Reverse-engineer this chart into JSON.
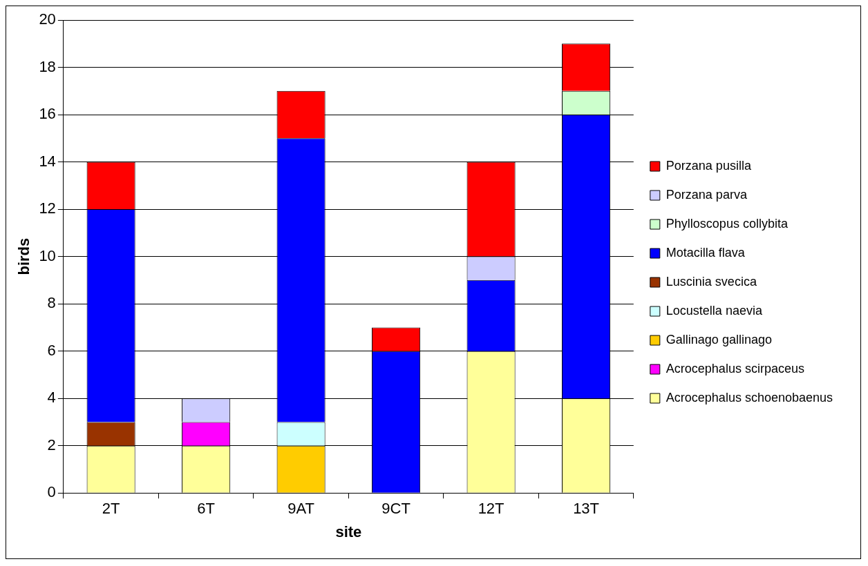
{
  "chart_data": {
    "type": "bar",
    "stacked": true,
    "xlabel": "site",
    "ylabel": "birds",
    "categories": [
      "2T",
      "6T",
      "9AT",
      "9CT",
      "12T",
      "13T"
    ],
    "ylim": [
      0,
      20
    ],
    "yticks": [
      0,
      2,
      4,
      6,
      8,
      10,
      12,
      14,
      16,
      18,
      20
    ],
    "grid": "y",
    "legend": "right",
    "series": [
      {
        "name": "Acrocephalus schoenobaenus",
        "color": "#ffff99",
        "values": [
          2,
          2,
          0,
          0,
          6,
          4
        ]
      },
      {
        "name": "Acrocephalus scirpaceus",
        "color": "#ff00ff",
        "values": [
          0,
          1,
          0,
          0,
          0,
          0
        ]
      },
      {
        "name": "Gallinago gallinago",
        "color": "#ffcc00",
        "values": [
          0,
          0,
          2,
          0,
          0,
          0
        ]
      },
      {
        "name": "Locustella naevia",
        "color": "#ccffff",
        "values": [
          0,
          0,
          1,
          0,
          0,
          0
        ]
      },
      {
        "name": "Luscinia svecica",
        "color": "#993300",
        "values": [
          1,
          0,
          0,
          0,
          0,
          0
        ]
      },
      {
        "name": "Motacilla flava",
        "color": "#0000ff",
        "values": [
          9,
          0,
          12,
          6,
          3,
          12
        ]
      },
      {
        "name": "Phylloscopus collybita",
        "color": "#ccffcc",
        "values": [
          0,
          0,
          0,
          0,
          0,
          1
        ]
      },
      {
        "name": "Porzana parva",
        "color": "#ccccff",
        "values": [
          0,
          1,
          0,
          0,
          1,
          0
        ]
      },
      {
        "name": "Porzana pusilla",
        "color": "#ff0000",
        "values": [
          2,
          0,
          2,
          1,
          4,
          2
        ]
      }
    ]
  }
}
